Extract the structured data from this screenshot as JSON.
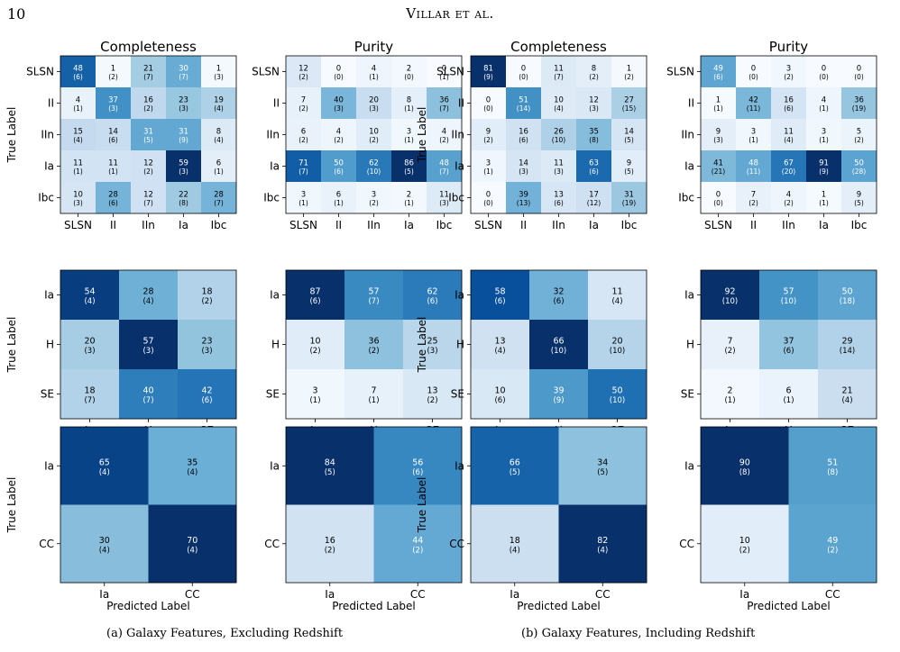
{
  "page_number": "10",
  "running_head": "Villar et al.",
  "captions": {
    "a": "(a) Galaxy Features, Excluding Redshift",
    "b": "(b) Galaxy Features, Including Redshift"
  },
  "axis_text": {
    "completeness": "Completeness",
    "purity": "Purity",
    "true_label": "True Label",
    "predicted_label": "Predicted Label"
  },
  "colormap": "Blues",
  "chart_data": [
    {
      "type": "heatmap",
      "panel": "a",
      "row": "five-class",
      "title": "Completeness",
      "categories": [
        "SLSN",
        "II",
        "IIn",
        "Ia",
        "Ibc"
      ],
      "values": [
        [
          48,
          1,
          21,
          30,
          1
        ],
        [
          4,
          37,
          16,
          23,
          19
        ],
        [
          15,
          14,
          31,
          31,
          8
        ],
        [
          11,
          11,
          12,
          59,
          6
        ],
        [
          10,
          28,
          12,
          22,
          28
        ]
      ],
      "errors": [
        [
          "6",
          "2",
          "7",
          "7",
          "3"
        ],
        [
          "1",
          "3",
          "2",
          "3",
          "4"
        ],
        [
          "4",
          "6",
          "5",
          "9",
          "4"
        ],
        [
          "1",
          "1",
          "2",
          "3",
          "1"
        ],
        [
          "3",
          "6",
          "7",
          "8",
          "7"
        ]
      ]
    },
    {
      "type": "heatmap",
      "panel": "a",
      "row": "five-class",
      "title": "Purity",
      "categories": [
        "SLSN",
        "II",
        "IIn",
        "Ia",
        "Ibc"
      ],
      "values": [
        [
          12,
          0,
          4,
          2,
          0
        ],
        [
          7,
          40,
          20,
          8,
          36
        ],
        [
          6,
          4,
          10,
          3,
          4
        ],
        [
          71,
          50,
          62,
          86,
          48
        ],
        [
          3,
          6,
          3,
          2,
          11
        ]
      ],
      "errors": [
        [
          "2",
          "0",
          "1",
          "0",
          "1"
        ],
        [
          "2",
          "3",
          "3",
          "1",
          "7"
        ],
        [
          "2",
          "2",
          "2",
          "1",
          "2"
        ],
        [
          "7",
          "6",
          "10",
          "5",
          "7"
        ],
        [
          "1",
          "1",
          "2",
          "1",
          "3"
        ]
      ]
    },
    {
      "type": "heatmap",
      "panel": "b",
      "row": "five-class",
      "title": "Completeness",
      "categories": [
        "SLSN",
        "II",
        "IIn",
        "Ia",
        "Ibc"
      ],
      "values": [
        [
          81,
          0,
          11,
          8,
          1
        ],
        [
          0,
          51,
          10,
          12,
          27
        ],
        [
          9,
          16,
          26,
          35,
          14
        ],
        [
          3,
          14,
          11,
          63,
          9
        ],
        [
          0,
          39,
          13,
          17,
          31
        ]
      ],
      "errors": [
        [
          "9",
          "0",
          "7",
          "2",
          "2"
        ],
        [
          "0",
          "14",
          "4",
          "3",
          "15"
        ],
        [
          "2",
          "6",
          "10",
          "8",
          "5"
        ],
        [
          "1",
          "3",
          "3",
          "6",
          "5"
        ],
        [
          "0",
          "13",
          "6",
          "12",
          "19"
        ]
      ]
    },
    {
      "type": "heatmap",
      "panel": "b",
      "row": "five-class",
      "title": "Purity",
      "categories": [
        "SLSN",
        "II",
        "IIn",
        "Ia",
        "Ibc"
      ],
      "values": [
        [
          49,
          0,
          3,
          0,
          0
        ],
        [
          1,
          42,
          16,
          4,
          36
        ],
        [
          9,
          3,
          11,
          3,
          5
        ],
        [
          41,
          48,
          67,
          91,
          50
        ],
        [
          0,
          7,
          4,
          1,
          9
        ]
      ],
      "errors": [
        [
          "6",
          "0",
          "2",
          "0",
          "0"
        ],
        [
          "1",
          "11",
          "6",
          "1",
          "19"
        ],
        [
          "3",
          "1",
          "4",
          "1",
          "2"
        ],
        [
          "21",
          "11",
          "20",
          "9",
          "28"
        ],
        [
          "0",
          "2",
          "2",
          "1",
          "5"
        ]
      ]
    },
    {
      "type": "heatmap",
      "panel": "a",
      "row": "three-class",
      "title": "",
      "categories": [
        "Ia",
        "H",
        "SE"
      ],
      "values": [
        [
          54,
          28,
          18
        ],
        [
          20,
          57,
          23
        ],
        [
          18,
          40,
          42
        ]
      ],
      "errors": [
        [
          "4",
          "4",
          "2"
        ],
        [
          "3",
          "3",
          "3"
        ],
        [
          "7",
          "7",
          "6"
        ]
      ]
    },
    {
      "type": "heatmap",
      "panel": "a",
      "row": "three-class",
      "title": "",
      "categories": [
        "Ia",
        "H",
        "SE"
      ],
      "values": [
        [
          87,
          57,
          62
        ],
        [
          10,
          36,
          25
        ],
        [
          3,
          7,
          13
        ]
      ],
      "errors": [
        [
          "6",
          "7",
          "6"
        ],
        [
          "2",
          "2",
          "3"
        ],
        [
          "1",
          "1",
          "2"
        ]
      ]
    },
    {
      "type": "heatmap",
      "panel": "b",
      "row": "three-class",
      "title": "",
      "categories": [
        "Ia",
        "H",
        "SE"
      ],
      "values": [
        [
          58,
          32,
          11
        ],
        [
          13,
          66,
          20
        ],
        [
          10,
          39,
          50
        ]
      ],
      "errors": [
        [
          "6",
          "6",
          "4"
        ],
        [
          "4",
          "10",
          "10"
        ],
        [
          "6",
          "9",
          "10"
        ]
      ]
    },
    {
      "type": "heatmap",
      "panel": "b",
      "row": "three-class",
      "title": "",
      "categories": [
        "Ia",
        "H",
        "SE"
      ],
      "values": [
        [
          92,
          57,
          50
        ],
        [
          7,
          37,
          29
        ],
        [
          2,
          6,
          21
        ]
      ],
      "errors": [
        [
          "10",
          "10",
          "18"
        ],
        [
          "2",
          "6",
          "14"
        ],
        [
          "1",
          "1",
          "4"
        ]
      ]
    },
    {
      "type": "heatmap",
      "panel": "a",
      "row": "two-class",
      "title": "",
      "categories": [
        "Ia",
        "CC"
      ],
      "values": [
        [
          65,
          35
        ],
        [
          30,
          70
        ]
      ],
      "errors": [
        [
          "4",
          "4"
        ],
        [
          "4",
          "4"
        ]
      ]
    },
    {
      "type": "heatmap",
      "panel": "a",
      "row": "two-class",
      "title": "",
      "categories": [
        "Ia",
        "CC"
      ],
      "values": [
        [
          84,
          56
        ],
        [
          16,
          44
        ]
      ],
      "errors": [
        [
          "5",
          "6"
        ],
        [
          "2",
          "2"
        ]
      ]
    },
    {
      "type": "heatmap",
      "panel": "b",
      "row": "two-class",
      "title": "",
      "categories": [
        "Ia",
        "CC"
      ],
      "values": [
        [
          66,
          34
        ],
        [
          18,
          82
        ]
      ],
      "errors": [
        [
          "5",
          "5"
        ],
        [
          "4",
          "4"
        ]
      ]
    },
    {
      "type": "heatmap",
      "panel": "b",
      "row": "two-class",
      "title": "",
      "categories": [
        "Ia",
        "CC"
      ],
      "values": [
        [
          90,
          51
        ],
        [
          10,
          49
        ]
      ],
      "errors": [
        [
          "8",
          "8"
        ],
        [
          "2",
          "2"
        ]
      ]
    }
  ]
}
